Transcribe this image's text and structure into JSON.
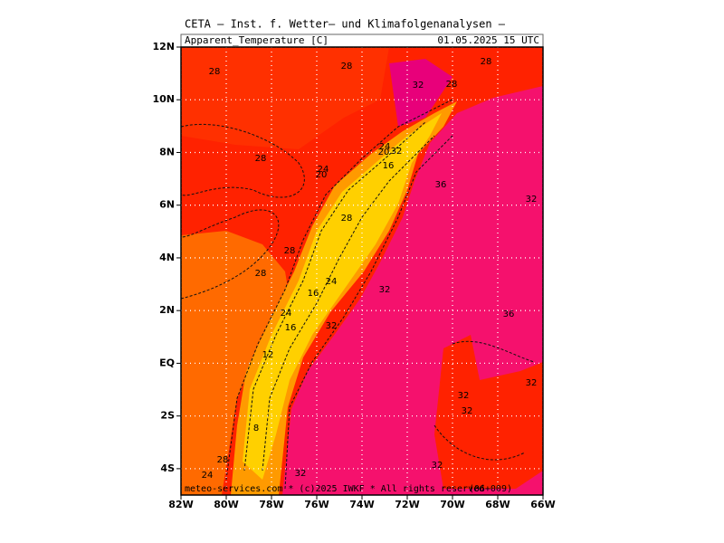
{
  "header": {
    "title": "CETA — Inst. f. Wetter— und Klimafolgenanalysen —",
    "variable": "Apparent_Temperature [C]",
    "valid_time": "01.05.2025 15 UTC"
  },
  "map": {
    "lat_labels": [
      "12N",
      "10N",
      "8N",
      "6N",
      "4N",
      "2N",
      "EQ",
      "2S",
      "4S"
    ],
    "lon_labels": [
      "82W",
      "80W",
      "78W",
      "76W",
      "74W",
      "72W",
      "70W",
      "68W",
      "66W"
    ],
    "contour_labels": [
      "28",
      "28",
      "28",
      "32",
      "28",
      "28",
      "24",
      "20",
      "32",
      "16",
      "24",
      "20",
      "36",
      "32",
      "28",
      "28",
      "28",
      "24",
      "16",
      "32",
      "24",
      "16",
      "32",
      "36",
      "12",
      "32",
      "32",
      "32",
      "8",
      "28",
      "24",
      "32",
      "32"
    ]
  },
  "footer": {
    "credit": "meteo-services.com * (c)2025 IWKF * All rights reserved",
    "run": "(06+009)"
  }
}
